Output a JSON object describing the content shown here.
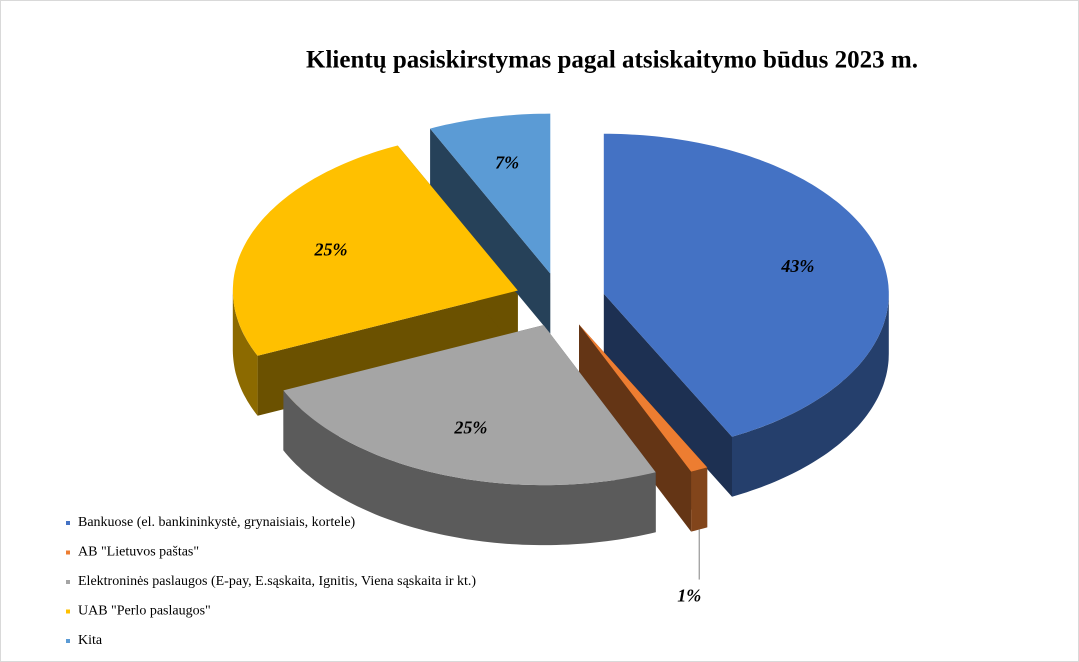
{
  "chart_data": {
    "type": "pie3d",
    "title": "Klientų  pasiskirstymas pagal atsiskaitymo būdus 2023 m.",
    "categories": [
      "Bankuose (el. bankininkystė, grynaisiais, kortele)",
      "AB \"Lietuvos paštas\"",
      "Elektroninės paslaugos (E-pay, E.sąskaita, Ignitis, Viena sąskaita ir kt.)",
      "UAB \"Perlo paslaugos\"",
      "Kita"
    ],
    "values": [
      43,
      1,
      25,
      25,
      7
    ],
    "value_labels": [
      "43%",
      "1%",
      "25%",
      "25%",
      "7%"
    ],
    "colors": [
      "#4472c4",
      "#ed7d31",
      "#a5a5a5",
      "#ffc000",
      "#5b9bd5"
    ],
    "legend": "bottom-left"
  }
}
